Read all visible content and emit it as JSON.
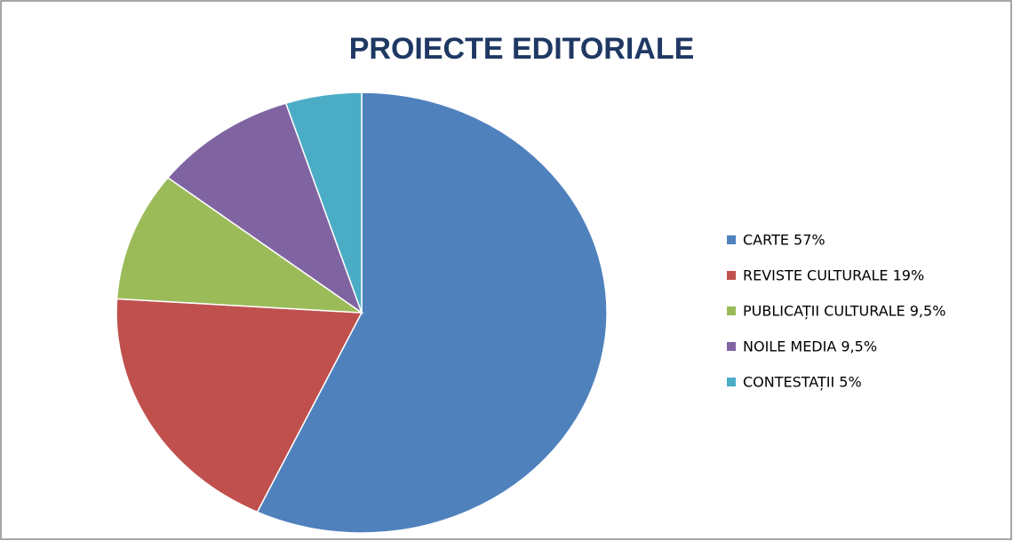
{
  "chart_data": {
    "type": "pie",
    "title": "PROIECTE EDITORIALE",
    "categories": [
      "CARTE  57%",
      "REVISTE CULTURALE 19%",
      "PUBLICAȚII CULTURALE  9,5%",
      "NOILE MEDIA  9,5%",
      "CONTESTAȚII 5%"
    ],
    "values": [
      57,
      19,
      9.5,
      9.5,
      5
    ],
    "colors": [
      "#4f81bd",
      "#c0504d",
      "#9bbb59",
      "#8064a2",
      "#4bacc6"
    ],
    "legend": "right"
  }
}
